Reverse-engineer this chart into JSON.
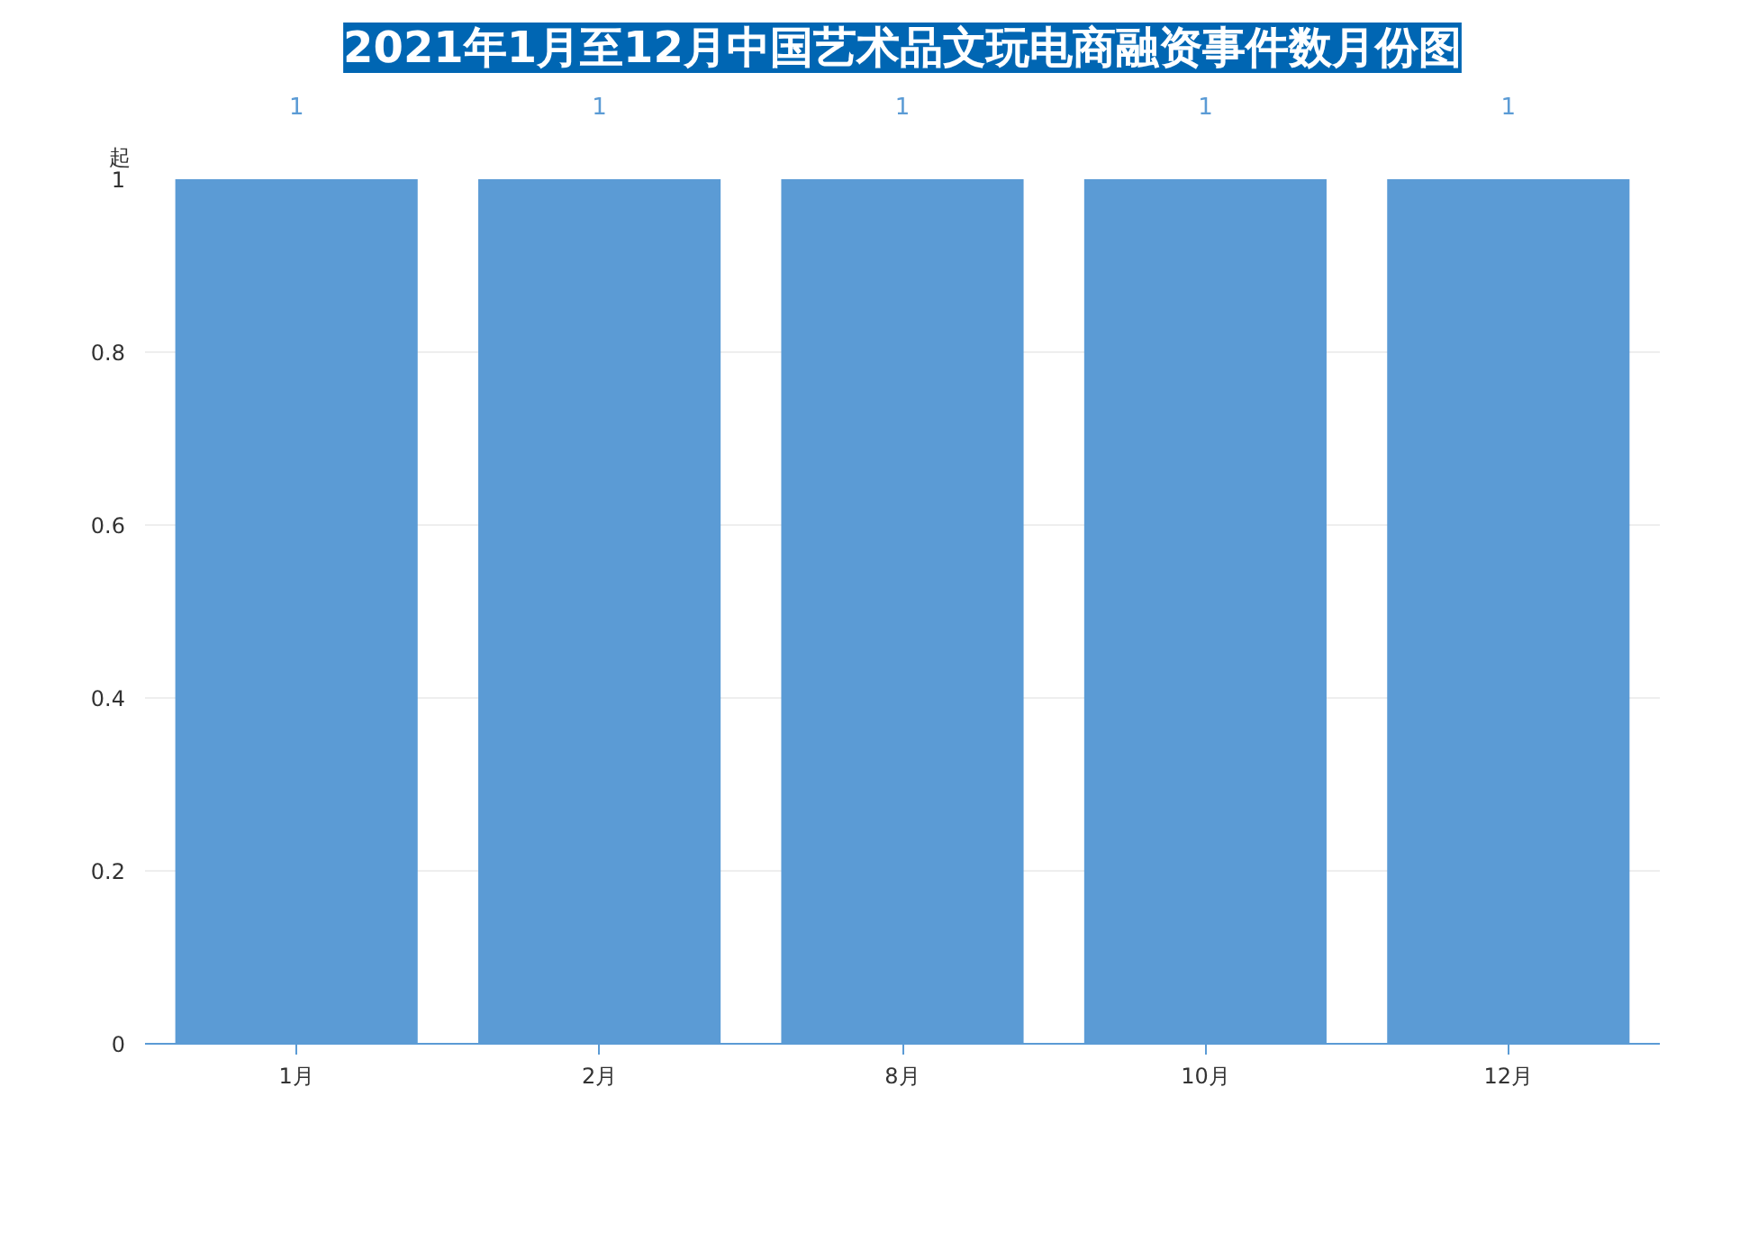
{
  "chart_data": {
    "type": "bar",
    "title": "2021年1月至12月中国艺术品文玩电商融资事件数月份图",
    "ylabel": "起",
    "categories": [
      "1月",
      "2月",
      "8月",
      "10月",
      "12月"
    ],
    "values": [
      1,
      1,
      1,
      1,
      1
    ],
    "color": "#5b9bd5",
    "ylim": [
      0,
      1
    ],
    "yticks": [
      0,
      0.2,
      0.4,
      0.6,
      0.8,
      1
    ],
    "grid": "y",
    "data_labels": true
  }
}
